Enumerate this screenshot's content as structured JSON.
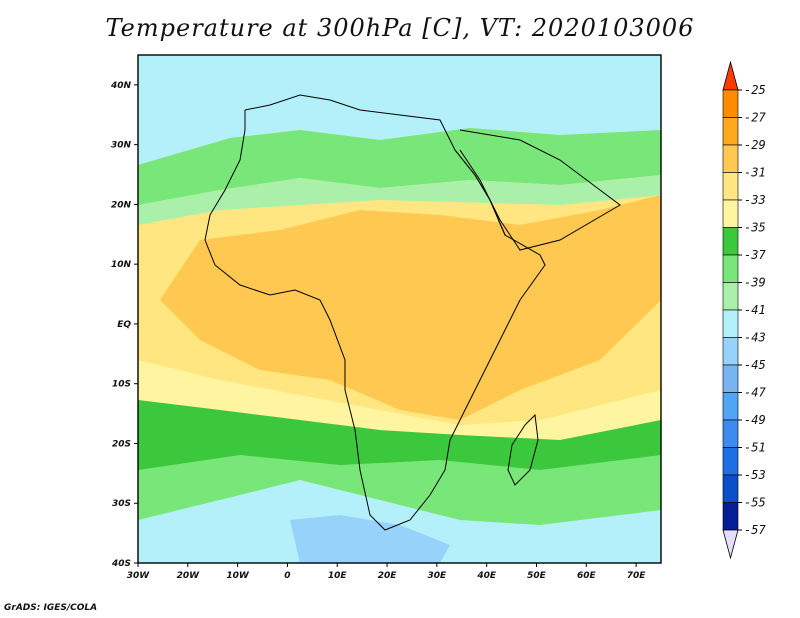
{
  "title": "Temperature at 300hPa [C], VT: 2020103006",
  "credit": "GrADS: IGES/COLA",
  "map": {
    "lon_range": [
      -30,
      75
    ],
    "lat_range": [
      -40,
      45
    ],
    "lon_ticks": [
      {
        "v": -30,
        "label": "30W"
      },
      {
        "v": -20,
        "label": "20W"
      },
      {
        "v": -10,
        "label": "10W"
      },
      {
        "v": 0,
        "label": "0"
      },
      {
        "v": 10,
        "label": "10E"
      },
      {
        "v": 20,
        "label": "20E"
      },
      {
        "v": 30,
        "label": "30E"
      },
      {
        "v": 40,
        "label": "40E"
      },
      {
        "v": 50,
        "label": "50E"
      },
      {
        "v": 60,
        "label": "60E"
      },
      {
        "v": 70,
        "label": "70E"
      }
    ],
    "lat_ticks": [
      {
        "v": 40,
        "label": "40N"
      },
      {
        "v": 30,
        "label": "30N"
      },
      {
        "v": 20,
        "label": "20N"
      },
      {
        "v": 10,
        "label": "10N"
      },
      {
        "v": 0,
        "label": "EQ"
      },
      {
        "v": -10,
        "label": "10S"
      },
      {
        "v": -20,
        "label": "20S"
      },
      {
        "v": -30,
        "label": "30S"
      },
      {
        "v": -40,
        "label": "40S"
      }
    ],
    "bands": [
      {
        "name": "north",
        "value": -43,
        "color": "#b4f0fa"
      },
      {
        "name": "north-strip",
        "value": -39,
        "color": "#78e678"
      },
      {
        "name": "north-edge",
        "value": -41,
        "color": "#aaf0aa"
      },
      {
        "name": "tropics-yellow",
        "value": -33,
        "color": "#ffe680"
      },
      {
        "name": "tropics-orange",
        "value": -31,
        "color": "#ffc850"
      },
      {
        "name": "south-yellow",
        "value": -35,
        "color": "#fff5a0"
      },
      {
        "name": "south-green",
        "value": -37,
        "color": "#3cc83c"
      },
      {
        "name": "south-lightgreen",
        "value": -39,
        "color": "#78e678"
      },
      {
        "name": "south-cold",
        "value": -45,
        "color": "#96d2fa"
      }
    ]
  },
  "colorbar": {
    "levels": [
      "-25",
      "-27",
      "-29",
      "-31",
      "-33",
      "-35",
      "-37",
      "-39",
      "-41",
      "-43",
      "-45",
      "-47",
      "-49",
      "-51",
      "-53",
      "-55",
      "-57"
    ],
    "colors": [
      "#ff5500",
      "#ff8c00",
      "#ffaa1e",
      "#ffc850",
      "#ffe680",
      "#fff5a0",
      "#3cc83c",
      "#78e678",
      "#aaf0aa",
      "#b4f0fa",
      "#96d2fa",
      "#78b4f0",
      "#50a5f5",
      "#3c8cf0",
      "#1e6ee6",
      "#0a4fc8",
      "#051e96"
    ],
    "top_tip_color": "#ff3c00",
    "bottom_tip_color": "#e6dcff"
  }
}
